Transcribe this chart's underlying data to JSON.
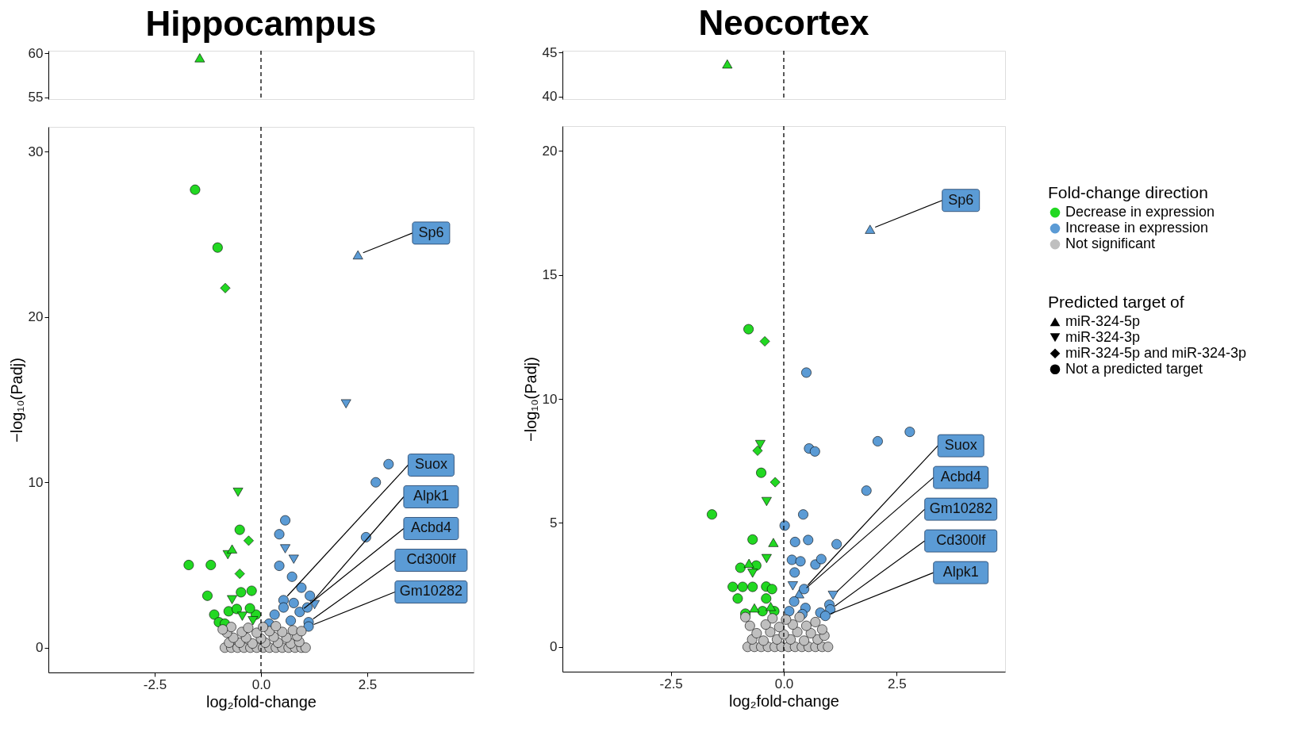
{
  "chart_data": [
    {
      "type": "scatter",
      "title": "Hippocampus",
      "xlim": [
        -5,
        5
      ],
      "ylim": [
        54.8,
        60.3
      ],
      "yticks": [
        55,
        60
      ],
      "tick_labels": "y",
      "ref_lines": [
        {
          "axis": "x",
          "value": 0,
          "line_style": "dashed"
        }
      ],
      "series": [
        {
          "color": "#22d822",
          "marker": "triangle",
          "x": [
            -1.44
          ],
          "values": [
            59.5
          ]
        }
      ]
    },
    {
      "type": "scatter",
      "xlabel": "log₂fold-change",
      "ylabel": "−log₁₀(Padj)",
      "xlim": [
        -5,
        5
      ],
      "ylim": [
        -1.5,
        31.5
      ],
      "xticks": [
        {
          "value": -2.5,
          "label": "-2.5"
        },
        {
          "value": 0,
          "label": "0.0"
        },
        {
          "value": 2.5,
          "label": "2.5"
        }
      ],
      "yticks": [
        0,
        10,
        20,
        30
      ],
      "ref_lines": [
        {
          "axis": "x",
          "value": 0,
          "line_style": "dashed"
        }
      ],
      "series": [
        {
          "color": "#22d822",
          "marker": "circle",
          "x": [
            -1.55,
            -1.02,
            -0.5,
            -1.7,
            -1.18,
            -1.26,
            -0.47,
            -0.22,
            -1.1,
            -0.99,
            -0.76,
            -0.12,
            -0.57,
            -0.26,
            -0.85
          ],
          "values": [
            27.7,
            24.2,
            7.13,
            5.0,
            5.0,
            3.14,
            3.35,
            3.44,
            2.0,
            1.54,
            2.2,
            2.0,
            2.34,
            2.38,
            1.45
          ]
        },
        {
          "color": "#22d822",
          "marker": "diamond",
          "x": [
            -0.84,
            -0.29,
            -0.5
          ],
          "values": [
            21.75,
            6.47,
            4.47
          ]
        },
        {
          "color": "#22d822",
          "marker": "triangle_down",
          "x": [
            -0.54,
            -0.78,
            -0.68,
            -0.44,
            -0.19
          ],
          "values": [
            9.4,
            5.62,
            2.9,
            1.9,
            1.63
          ]
        },
        {
          "color": "#22d822",
          "marker": "triangle",
          "x": [
            -0.68
          ],
          "values": [
            5.97
          ]
        },
        {
          "color": "#5b9bd5",
          "marker": "triangle",
          "x": [
            2.28
          ],
          "values": [
            23.76
          ]
        },
        {
          "color": "#5b9bd5",
          "marker": "triangle_down",
          "x": [
            2.0,
            0.57,
            0.77,
            1.26
          ],
          "values": [
            14.75,
            5.98,
            5.35,
            2.6
          ]
        },
        {
          "color": "#5b9bd5",
          "marker": "circle",
          "x": [
            3.0,
            2.7,
            0.57,
            0.43,
            0.43,
            0.73,
            0.95,
            2.47,
            1.15,
            0.77,
            0.53,
            0.53,
            0.91,
            0.32,
            0.7,
            1.12,
            0.19,
            1.09,
            1.12
          ],
          "values": [
            11.1,
            10.0,
            7.7,
            6.86,
            4.95,
            4.29,
            3.63,
            6.68,
            3.14,
            2.7,
            2.87,
            2.43,
            2.16,
            2.0,
            1.63,
            1.54,
            1.45,
            2.43,
            1.28
          ]
        },
        {
          "color": "#bfbfbf",
          "marker": "circle",
          "x": [
            -0.85,
            -0.7,
            -0.55,
            -0.4,
            -0.25,
            -0.1,
            0.05,
            0.2,
            0.35,
            0.5,
            0.65,
            0.8,
            0.95,
            1.05,
            -0.75,
            -0.5,
            -0.2,
            0.1,
            0.4,
            0.7,
            0.9,
            -0.65,
            -0.35,
            0.0,
            0.3,
            0.6,
            0.85,
            -0.8,
            -0.45,
            -0.1,
            0.2,
            0.5,
            0.75,
            -0.7,
            -0.3,
            0.05,
            0.35,
            0.95,
            -0.9
          ],
          "values": [
            0,
            0,
            0,
            0,
            0,
            0,
            0,
            0,
            0,
            0,
            0,
            0,
            0,
            0,
            0.3,
            0.3,
            0.25,
            0.3,
            0.3,
            0.25,
            0.35,
            0.6,
            0.6,
            0.55,
            0.65,
            0.6,
            0.7,
            0.9,
            0.95,
            0.9,
            1.0,
            0.95,
            1.05,
            1.25,
            1.2,
            1.25,
            1.3,
            1.0,
            1.1
          ]
        }
      ],
      "annotations": [
        {
          "text": "Sp6",
          "x": 2.28,
          "y": 23.76
        },
        {
          "text": "Suox",
          "x": 0.53,
          "y": 2.87
        },
        {
          "text": "Alpk1",
          "x": 1.09,
          "y": 2.43
        },
        {
          "text": "Acbd4",
          "x": 0.91,
          "y": 2.16
        },
        {
          "text": "Cd300lf",
          "x": 1.12,
          "y": 1.54
        },
        {
          "text": "Gm10282",
          "x": 1.12,
          "y": 1.28
        }
      ]
    },
    {
      "type": "scatter",
      "title": "Neocortex",
      "xlim": [
        -4.9,
        4.9
      ],
      "ylim": [
        39.7,
        45.2
      ],
      "yticks": [
        40,
        45
      ],
      "tick_labels": "y",
      "ref_lines": [
        {
          "axis": "x",
          "value": 0,
          "line_style": "dashed"
        }
      ],
      "series": [
        {
          "color": "#22d822",
          "marker": "triangle",
          "x": [
            -1.25
          ],
          "values": [
            43.7
          ]
        }
      ]
    },
    {
      "type": "scatter",
      "xlabel": "log₂fold-change",
      "ylabel": "−log₁₀(Padj)",
      "xlim": [
        -4.9,
        4.9
      ],
      "ylim": [
        -1,
        21
      ],
      "xticks": [
        {
          "value": -2.5,
          "label": "-2.5"
        },
        {
          "value": 0,
          "label": "0.0"
        },
        {
          "value": 2.5,
          "label": "2.5"
        }
      ],
      "yticks": [
        0,
        5,
        10,
        15,
        20
      ],
      "ref_lines": [
        {
          "axis": "x",
          "value": 0,
          "line_style": "dashed"
        }
      ],
      "legend": "right",
      "legend_title": [
        "Fold-change direction",
        "Predicted target of"
      ],
      "series": [
        {
          "name": "Decrease in expression",
          "color": "#22d822",
          "marker": "circle",
          "x": [
            -0.78,
            -0.5,
            -1.59,
            -0.69,
            -0.96,
            -0.61,
            -1.13,
            -0.91,
            -0.69,
            -1.02,
            -0.39,
            -0.26,
            -0.39,
            -0.85,
            -0.47,
            -0.21
          ],
          "values": [
            12.81,
            7.02,
            5.34,
            4.33,
            3.19,
            3.28,
            2.42,
            2.42,
            2.42,
            1.95,
            2.43,
            2.33,
            1.95,
            1.34,
            1.44,
            1.44
          ]
        },
        {
          "color": "#22d822",
          "marker": "diamond",
          "x": [
            -0.42,
            -0.58,
            -0.19
          ],
          "values": [
            12.32,
            7.91,
            6.64
          ]
        },
        {
          "color": "#22d822",
          "marker": "triangle_down",
          "x": [
            -0.52,
            -0.38,
            -0.38,
            -0.69
          ],
          "values": [
            8.16,
            5.86,
            3.56,
            2.97
          ]
        },
        {
          "color": "#22d822",
          "marker": "triangle",
          "x": [
            -0.23,
            -0.77,
            -0.29,
            -0.65
          ],
          "values": [
            4.21,
            3.37,
            1.63,
            1.57
          ]
        },
        {
          "color": "#5b9bd5",
          "marker": "triangle",
          "x": [
            1.91,
            0.34
          ],
          "values": [
            16.84,
            2.14
          ]
        },
        {
          "color": "#5b9bd5",
          "marker": "triangle_down",
          "x": [
            0.2,
            1.09
          ],
          "values": [
            2.46,
            2.08
          ]
        },
        {
          "name": "Increase in expression",
          "color": "#5b9bd5",
          "marker": "circle",
          "x": [
            0.5,
            2.79,
            2.08,
            0.56,
            0.69,
            1.83,
            0.43,
            0.02,
            0.25,
            0.54,
            1.17,
            0.18,
            0.37,
            0.7,
            0.83,
            0.24,
            0.45,
            1.01,
            0.81,
            0.23,
            0.48,
            0.12,
            0.41,
            1.03,
            0.92
          ],
          "values": [
            11.06,
            8.67,
            8.29,
            8.0,
            7.88,
            6.3,
            5.34,
            4.89,
            4.23,
            4.31,
            4.14,
            3.51,
            3.45,
            3.32,
            3.54,
            3.0,
            2.33,
            1.7,
            1.38,
            1.83,
            1.57,
            1.44,
            1.32,
            1.51,
            1.25
          ]
        },
        {
          "name": "Not significant",
          "color": "#bfbfbf",
          "marker": "circle",
          "x": [
            -0.8,
            -0.65,
            -0.5,
            -0.35,
            -0.2,
            -0.05,
            0.1,
            0.25,
            0.4,
            0.55,
            0.7,
            0.85,
            0.98,
            -0.7,
            -0.45,
            -0.15,
            0.15,
            0.45,
            0.75,
            0.9,
            -0.6,
            -0.3,
            0.0,
            0.3,
            0.6,
            0.85,
            -0.75,
            -0.4,
            -0.1,
            0.2,
            0.5,
            0.7,
            -0.85,
            -0.25,
            0.05,
            0.35
          ],
          "values": [
            0,
            0,
            0,
            0,
            0,
            0,
            0,
            0,
            0,
            0,
            0,
            0,
            0,
            0.3,
            0.25,
            0.3,
            0.3,
            0.25,
            0.3,
            0.45,
            0.55,
            0.6,
            0.5,
            0.6,
            0.55,
            0.7,
            0.85,
            0.9,
            0.8,
            0.9,
            0.85,
            1.0,
            1.2,
            1.15,
            1.1,
            1.2
          ]
        },
        {
          "name": "miR-324-5p",
          "marker": "triangle"
        },
        {
          "name": "miR-324-3p",
          "marker": "triangle_down"
        },
        {
          "name": "miR-324-5p and miR-324-3p",
          "marker": "diamond"
        },
        {
          "name": "Not a predicted target",
          "marker": "circle"
        }
      ],
      "annotations": [
        {
          "text": "Sp6",
          "x": 1.91,
          "y": 16.84
        },
        {
          "text": "Suox",
          "x": 0.45,
          "y": 2.33
        },
        {
          "text": "Acbd4",
          "x": 0.41,
          "y": 2.23
        },
        {
          "text": "Gm10282",
          "x": 1.09,
          "y": 2.08
        },
        {
          "text": "Cd300lf",
          "x": 1.03,
          "y": 1.51
        },
        {
          "text": "Alpk1",
          "x": 0.92,
          "y": 1.25
        }
      ]
    }
  ]
}
